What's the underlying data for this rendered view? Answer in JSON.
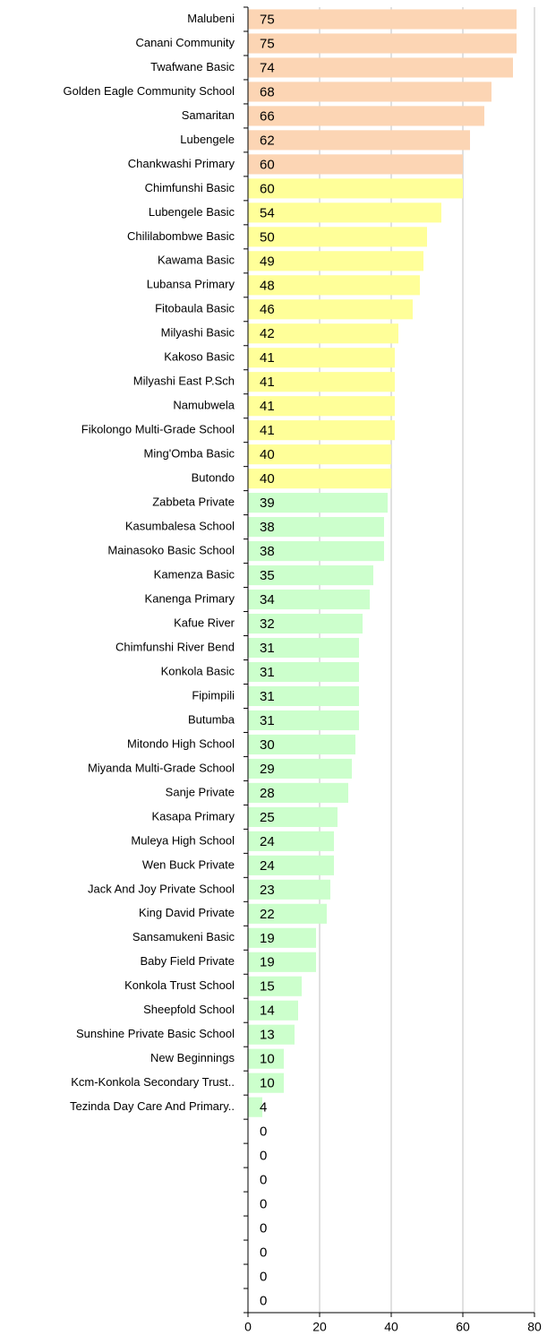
{
  "chart_data": {
    "type": "hbar",
    "categories": [
      "Malubeni",
      "Canani Community",
      "Twafwane Basic",
      "Golden Eagle Community School",
      "Samaritan",
      "Lubengele",
      "Chankwashi Primary",
      "Chimfunshi Basic",
      "Lubengele Basic",
      "Chililabombwe Basic",
      "Kawama Basic",
      "Lubansa Primary",
      "Fitobaula Basic",
      "Milyashi Basic",
      "Kakoso Basic",
      "Milyashi East P.Sch",
      "Namubwela",
      "Fikolongo Multi-Grade School",
      "Ming'Omba Basic",
      "Butondo",
      "Zabbeta Private",
      "Kasumbalesa School",
      "Mainasoko Basic School",
      "Kamenza Basic",
      "Kanenga Primary",
      "Kafue River",
      "Chimfunshi River Bend",
      "Konkola Basic",
      "Fipimpili",
      "Butumba",
      "Mitondo High School",
      "Miyanda Multi-Grade School",
      "Sanje Private",
      "Kasapa Primary",
      "Muleya High School",
      "Wen Buck  Private",
      "Jack And Joy Private School",
      "King David Private",
      "Sansamukeni Basic",
      "Baby Field Private",
      "Konkola Trust School",
      "Sheepfold School",
      "Sunshine Private Basic School",
      "New Beginnings",
      "Kcm-Konkola Secondary Trust..",
      "Tezinda Day Care And Primary..",
      null,
      null,
      null,
      null,
      null,
      null,
      null,
      null
    ],
    "values": [
      75,
      75,
      74,
      68,
      66,
      62,
      60,
      60,
      54,
      50,
      49,
      48,
      46,
      42,
      41,
      41,
      41,
      41,
      40,
      40,
      39,
      38,
      38,
      35,
      34,
      32,
      31,
      31,
      31,
      31,
      30,
      29,
      28,
      25,
      24,
      24,
      23,
      22,
      19,
      19,
      15,
      14,
      13,
      10,
      10,
      4,
      0,
      0,
      0,
      0,
      0,
      0,
      0,
      0
    ],
    "colors": [
      "#fcd5b4",
      "#fcd5b4",
      "#fcd5b4",
      "#fcd5b4",
      "#fcd5b4",
      "#fcd5b4",
      "#fcd5b4",
      "#ffff99",
      "#ffff99",
      "#ffff99",
      "#ffff99",
      "#ffff99",
      "#ffff99",
      "#ffff99",
      "#ffff99",
      "#ffff99",
      "#ffff99",
      "#ffff99",
      "#ffff99",
      "#ffff99",
      "#ccffcc",
      "#ccffcc",
      "#ccffcc",
      "#ccffcc",
      "#ccffcc",
      "#ccffcc",
      "#ccffcc",
      "#ccffcc",
      "#ccffcc",
      "#ccffcc",
      "#ccffcc",
      "#ccffcc",
      "#ccffcc",
      "#ccffcc",
      "#ccffcc",
      "#ccffcc",
      "#ccffcc",
      "#ccffcc",
      "#ccffcc",
      "#ccffcc",
      "#ccffcc",
      "#ccffcc",
      "#ccffcc",
      "#ccffcc",
      "#ccffcc",
      "#ccffcc",
      "#ccffcc",
      "#ccffcc",
      "#ccffcc",
      "#ccffcc",
      "#ccffcc",
      "#ccffcc",
      "#ccffcc",
      "#ccffcc"
    ],
    "xlim": [
      0,
      80
    ],
    "xticks": [
      0,
      20,
      40,
      60,
      80
    ],
    "grid": true
  }
}
